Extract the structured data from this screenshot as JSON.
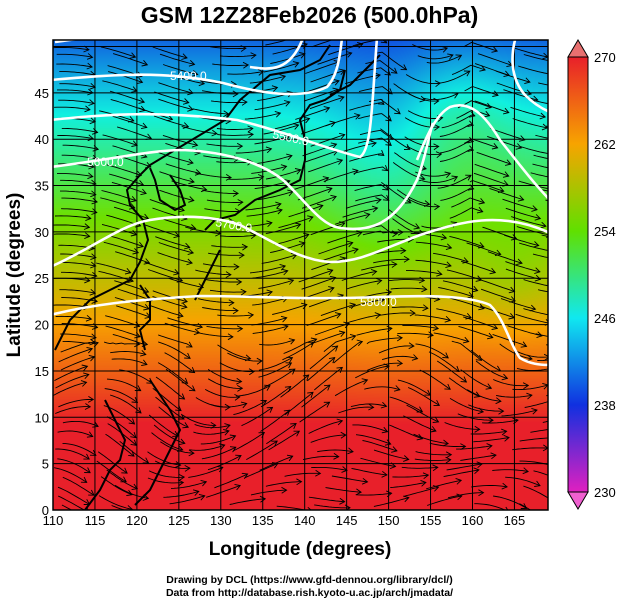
{
  "title": "GSM 12Z28Feb2026 (500.0hPa)",
  "map": {
    "type": "contour-shaded-streamline",
    "xlabel": "Longitude (degrees)",
    "ylabel": "Latitude  (degrees)",
    "xlim": [
      110,
      169
    ],
    "ylim": [
      0,
      50.7
    ],
    "xticks": [
      "110",
      "115",
      "120",
      "125",
      "130",
      "135",
      "140",
      "145",
      "150",
      "155",
      "160",
      "165"
    ],
    "yticks": [
      "0",
      "5",
      "10",
      "15",
      "20",
      "25",
      "30",
      "35",
      "40",
      "45"
    ],
    "grid": true,
    "shading_variable_range": [
      230,
      270
    ],
    "contour_labels": [
      "5400.0",
      "5500.0",
      "5600.0",
      "5700.0",
      "5800.0"
    ],
    "contour_color": "#ffffff",
    "streamline_color": "#000000"
  },
  "colorbar": {
    "ticks": [
      "270",
      "262",
      "254",
      "246",
      "238",
      "230"
    ],
    "colors": [
      "#e8202a",
      "#f7a400",
      "#6fe000",
      "#10f0e0",
      "#1030e0",
      "#e020c0"
    ]
  },
  "credits": {
    "line1": "Drawing by DCL (https://www.gfd-dennou.org/library/dcl/)",
    "line2": "Data from http://database.rish.kyoto-u.ac.jp/arch/jmadata/"
  }
}
